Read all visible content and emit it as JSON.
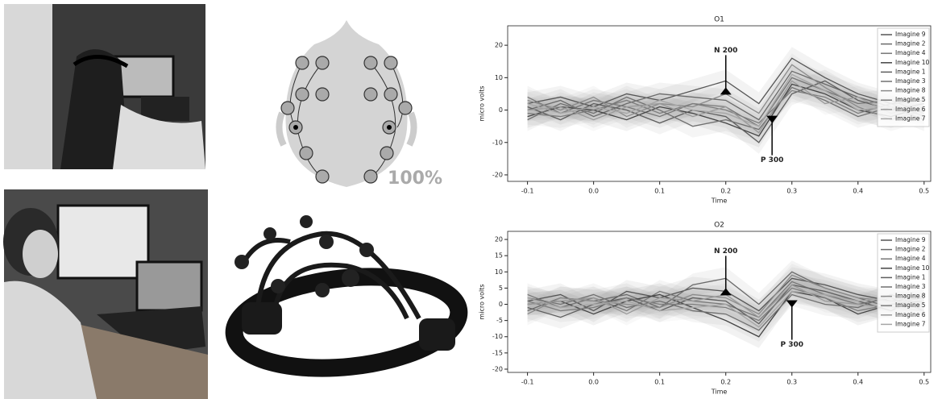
{
  "head_diagram": {
    "battery": "100%"
  },
  "chart_data": [
    {
      "type": "line",
      "title": "O1",
      "x_label": "Time",
      "y_label": "micro volts",
      "x": [
        -0.1,
        -0.05,
        0,
        0.05,
        0.1,
        0.15,
        0.2,
        0.25,
        0.3,
        0.35,
        0.4,
        0.45,
        0.5
      ],
      "xlim": [
        -0.13,
        0.51
      ],
      "ylim": [
        -22,
        26
      ],
      "xticks": [
        -0.1,
        {
          "value": 0,
          "label": "0.0"
        },
        0.1,
        0.2,
        0.3,
        0.4,
        0.5
      ],
      "yticks": [
        -20,
        -10,
        0,
        10,
        20
      ],
      "legend": "upper right",
      "annotations": [
        {
          "text": "N 200",
          "x": 0.2,
          "y": 7,
          "placement": "above"
        },
        {
          "text": "P 300",
          "x": 0.27,
          "y": -4,
          "placement": "below"
        }
      ],
      "series": [
        {
          "name": "Imagine 9",
          "color": "#555555",
          "values": [
            2,
            4,
            1,
            5,
            3,
            6,
            9,
            2,
            16,
            10,
            5,
            2,
            3
          ]
        },
        {
          "name": "Imagine 2",
          "color": "#6a6a6a",
          "values": [
            0,
            3,
            -2,
            2,
            5,
            4,
            3,
            -3,
            12,
            8,
            4,
            1,
            0
          ]
        },
        {
          "name": "Imagine 4",
          "color": "#777777",
          "values": [
            4,
            -1,
            3,
            1,
            -2,
            2,
            1,
            -5,
            10,
            6,
            2,
            3,
            -1
          ]
        },
        {
          "name": "Imagine 10",
          "color": "#444444",
          "values": [
            -2,
            1,
            0,
            -3,
            1,
            -1,
            -4,
            -8,
            8,
            5,
            0,
            -2,
            1
          ]
        },
        {
          "name": "Imagine 1",
          "color": "#5e5e5e",
          "values": [
            1,
            -3,
            2,
            0,
            -4,
            0,
            -2,
            -10,
            5,
            9,
            3,
            0,
            2
          ]
        },
        {
          "name": "Imagine 3",
          "color": "#707070",
          "values": [
            -3,
            2,
            -1,
            4,
            0,
            -5,
            -3,
            -6,
            7,
            3,
            -2,
            1,
            -3
          ]
        },
        {
          "name": "Imagine 8",
          "color": "#8a8a8a",
          "values": [
            3,
            0,
            4,
            -2,
            2,
            1,
            5,
            -1,
            14,
            7,
            1,
            -3,
            0
          ]
        },
        {
          "name": "Imagine 5",
          "color": "#7d7d7d",
          "values": [
            -1,
            -2,
            0,
            3,
            -1,
            2,
            0,
            -4,
            6,
            4,
            -1,
            2,
            -2
          ]
        },
        {
          "name": "Imagine 6",
          "color": "#999999",
          "values": [
            0,
            1,
            -3,
            1,
            2,
            -2,
            1,
            -7,
            9,
            2,
            4,
            -1,
            1
          ]
        },
        {
          "name": "Imagine 7",
          "color": "#a5a5a5",
          "values": [
            2,
            -1,
            1,
            -1,
            3,
            0,
            -1,
            -5,
            11,
            6,
            0,
            1,
            -1
          ]
        }
      ]
    },
    {
      "type": "line",
      "title": "O2",
      "x_label": "Time",
      "y_label": "micro volts",
      "x": [
        -0.1,
        -0.05,
        0,
        0.05,
        0.1,
        0.15,
        0.2,
        0.25,
        0.3,
        0.35,
        0.4,
        0.45,
        0.5
      ],
      "xlim": [
        -0.13,
        0.51
      ],
      "ylim": [
        -21,
        22.5
      ],
      "xticks": [
        -0.1,
        {
          "value": 0,
          "label": "0.0"
        },
        0.1,
        0.2,
        0.3,
        0.4,
        0.5
      ],
      "yticks": [
        -20,
        -15,
        -10,
        -5,
        0,
        5,
        10,
        15,
        20
      ],
      "legend": "upper right",
      "annotations": [
        {
          "text": "N 200",
          "x": 0.2,
          "y": 5,
          "placement": "above"
        },
        {
          "text": "P 300",
          "x": 0.3,
          "y": -1,
          "placement": "below"
        }
      ],
      "series": [
        {
          "name": "Imagine 9",
          "color": "#555555",
          "values": [
            1,
            3,
            -2,
            4,
            2,
            5,
            4,
            -2,
            8,
            6,
            3,
            1,
            2
          ]
        },
        {
          "name": "Imagine 2",
          "color": "#6a6a6a",
          "values": [
            -2,
            2,
            1,
            3,
            -1,
            6,
            8,
            0,
            10,
            5,
            2,
            -1,
            0
          ]
        },
        {
          "name": "Imagine 4",
          "color": "#777777",
          "values": [
            3,
            -1,
            2,
            -2,
            4,
            1,
            0,
            -4,
            7,
            3,
            0,
            2,
            -2
          ]
        },
        {
          "name": "Imagine 10",
          "color": "#444444",
          "values": [
            0,
            1,
            -3,
            1,
            3,
            -1,
            -5,
            -10,
            4,
            2,
            -3,
            0,
            1
          ]
        },
        {
          "name": "Imagine 1",
          "color": "#5e5e5e",
          "values": [
            -1,
            -4,
            0,
            2,
            -2,
            2,
            1,
            -6,
            6,
            4,
            1,
            -2,
            3
          ]
        },
        {
          "name": "Imagine 3",
          "color": "#707070",
          "values": [
            2,
            0,
            3,
            -1,
            1,
            -2,
            -3,
            -8,
            3,
            0,
            -1,
            3,
            -1
          ]
        },
        {
          "name": "Imagine 8",
          "color": "#8a8a8a",
          "values": [
            -3,
            2,
            1,
            0,
            -1,
            3,
            2,
            -3,
            9,
            5,
            2,
            1,
            0
          ]
        },
        {
          "name": "Imagine 5",
          "color": "#7d7d7d",
          "values": [
            1,
            -2,
            -1,
            2,
            0,
            0,
            -1,
            -5,
            5,
            2,
            -2,
            0,
            2
          ]
        },
        {
          "name": "Imagine 6",
          "color": "#999999",
          "values": [
            0,
            1,
            2,
            -3,
            2,
            1,
            3,
            -4,
            6,
            1,
            0,
            -1,
            -2
          ]
        },
        {
          "name": "Imagine 7",
          "color": "#a5a5a5",
          "values": [
            2,
            -1,
            0,
            1,
            -2,
            -1,
            0,
            -7,
            4,
            3,
            1,
            2,
            1
          ]
        }
      ]
    }
  ]
}
